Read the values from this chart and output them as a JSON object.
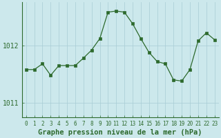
{
  "x": [
    0,
    1,
    2,
    3,
    4,
    5,
    6,
    7,
    8,
    9,
    10,
    11,
    12,
    13,
    14,
    15,
    16,
    17,
    18,
    19,
    20,
    21,
    22,
    23
  ],
  "y": [
    1011.58,
    1011.58,
    1011.68,
    1011.48,
    1011.65,
    1011.65,
    1011.65,
    1011.78,
    1011.92,
    1012.12,
    1012.58,
    1012.6,
    1012.58,
    1012.38,
    1012.12,
    1011.88,
    1011.72,
    1011.68,
    1011.4,
    1011.38,
    1011.58,
    1012.08,
    1012.22,
    1012.1
  ],
  "line_color": "#2d6a2d",
  "marker_color": "#2d6a2d",
  "bg_color": "#cce8ec",
  "grid_color": "#a8ccd4",
  "axis_color": "#2d6a2d",
  "xlabel": "Graphe pression niveau de la mer (hPa)",
  "yticks": [
    1011,
    1012
  ],
  "ylim": [
    1010.75,
    1012.75
  ],
  "xlim": [
    -0.5,
    23.5
  ],
  "xlabel_fontsize": 7.5,
  "tick_fontsize": 7,
  "left_spine_x": 0
}
